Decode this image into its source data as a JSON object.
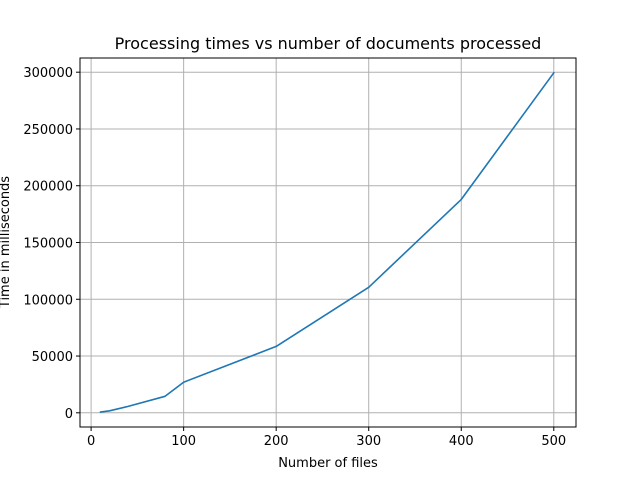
{
  "chart_data": {
    "type": "line",
    "title": "Processing times vs number of documents processed",
    "xlabel": "Number of files",
    "ylabel": "Time in milliseconds",
    "xlim": [
      -12,
      524
    ],
    "ylim": [
      -12500,
      312500
    ],
    "xticks": [
      0,
      100,
      200,
      300,
      400,
      500
    ],
    "yticks": [
      0,
      50000,
      100000,
      150000,
      200000,
      250000,
      300000
    ],
    "grid": true,
    "series": [
      {
        "color": "#1f77b4",
        "x": [
          10,
          20,
          40,
          80,
          100,
          200,
          300,
          400,
          500
        ],
        "y": [
          600,
          1800,
          5600,
          14500,
          27000,
          58500,
          110500,
          188000,
          299500
        ]
      }
    ]
  }
}
